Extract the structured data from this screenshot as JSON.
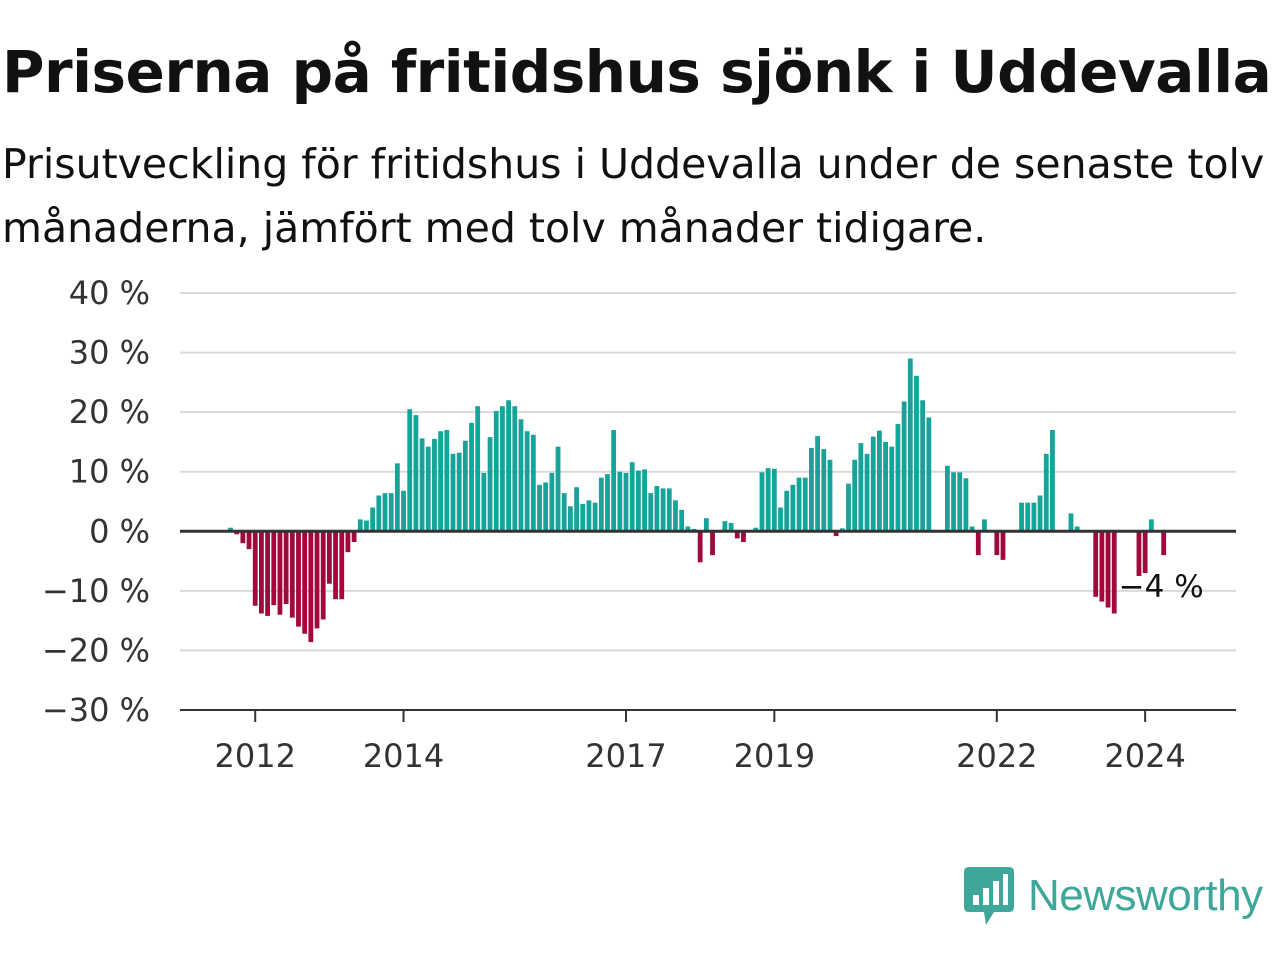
{
  "header": {
    "title": "Priserna på fritidshus sjönk i Uddevalla",
    "subtitle": "Prisutveckling för fritidshus i Uddevalla under de senaste tolv månaderna, jämfört med tolv månader tidigare."
  },
  "brand": {
    "name": "Newsworthy",
    "icon": "newsworthy-logo-icon",
    "color": "#3fa79a"
  },
  "colors": {
    "positive": "#16a39a",
    "negative": "#a0083e",
    "zero_line": "#333333",
    "grid": "#d9d9d9"
  },
  "annotation": {
    "text": "−4 %"
  },
  "chart_data": {
    "type": "bar",
    "title": "Priserna på fritidshus sjönk i Uddevalla",
    "xlabel": "",
    "ylabel": "",
    "ylim": [
      -30,
      40
    ],
    "yticks": [
      40,
      30,
      20,
      10,
      0,
      -10,
      -20,
      -30
    ],
    "ytick_labels": [
      "40 %",
      "30 %",
      "20 %",
      "10 %",
      "0 %",
      "−10 %",
      "−20 %",
      "−30 %"
    ],
    "xticks": [
      "2012",
      "2014",
      "2017",
      "2019",
      "2022",
      "2024"
    ],
    "grid": true,
    "start": "2011-09",
    "frequency": "monthly",
    "values": [
      0.6,
      -0.5,
      -2,
      -3,
      -12.5,
      -13.8,
      -14.2,
      -12.4,
      -14,
      -12.2,
      -14.5,
      -16,
      -17.2,
      -18.6,
      -16.3,
      -14.8,
      -8.8,
      -11.4,
      -11.4,
      -3.5,
      -1.8,
      2,
      1.8,
      4,
      6,
      6.4,
      6.4,
      11.4,
      6.8,
      20.5,
      19.5,
      15.6,
      14.2,
      15.5,
      16.8,
      17,
      13,
      13.2,
      15.2,
      18.2,
      21,
      9.8,
      15.8,
      20.2,
      21,
      22,
      21,
      18.8,
      16.8,
      16.2,
      7.8,
      8.2,
      9.8,
      14.2,
      6.4,
      4.2,
      7.4,
      4.6,
      5.2,
      4.8,
      9,
      9.6,
      17,
      10,
      9.8,
      11.6,
      10.2,
      10.4,
      6.4,
      7.6,
      7.2,
      7.2,
      5.2,
      3.6,
      0.8,
      0.4,
      -5.2,
      2.2,
      -4,
      0,
      1.7,
      1.4,
      -1.2,
      -1.8,
      0,
      0.6,
      9.9,
      10.6,
      10.5,
      4,
      6.8,
      7.8,
      9,
      9,
      14,
      16,
      13.8,
      12,
      -0.8,
      0.5,
      8,
      12,
      14.8,
      13,
      15.9,
      16.9,
      15,
      14.2,
      18,
      21.8,
      29,
      26.1,
      22,
      19.1,
      0,
      0,
      11,
      9.9,
      9.9,
      8.9,
      0.8,
      -4,
      2,
      0,
      -4,
      -4.8,
      0,
      0,
      4.8,
      4.8,
      4.8,
      6,
      13,
      17,
      0,
      0,
      3,
      0.8,
      0,
      0,
      -11,
      -11.8,
      -12.8,
      -13.8,
      0,
      0,
      0,
      -7.5,
      -7,
      2,
      0,
      -4
    ]
  }
}
